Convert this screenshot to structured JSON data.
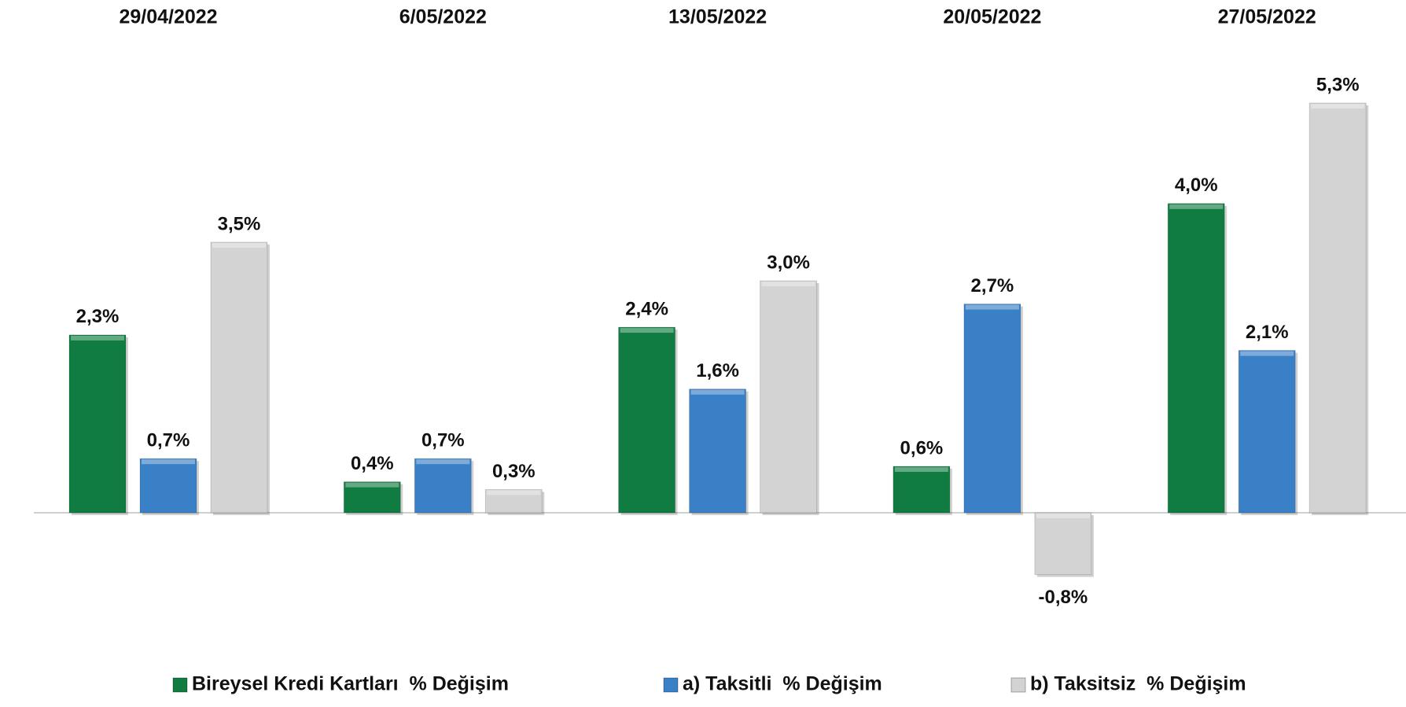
{
  "chart_data": {
    "type": "bar",
    "categories": [
      "29/04/2022",
      "6/05/2022",
      "13/05/2022",
      "20/05/2022",
      "27/05/2022"
    ],
    "series": [
      {
        "name": "Bireysel Kredi Kartları  % Değişim",
        "color": "#107c41",
        "values": [
          2.3,
          0.4,
          2.4,
          0.6,
          4.0
        ],
        "value_labels": [
          "2,3%",
          "0,4%",
          "2,4%",
          "0,6%",
          "4,0%"
        ]
      },
      {
        "name": "a) Taksitli  % Değişim",
        "color": "#3a80c6",
        "values": [
          0.7,
          0.7,
          1.6,
          2.7,
          2.1
        ],
        "value_labels": [
          "0,7%",
          "0,7%",
          "1,6%",
          "2,7%",
          "2,1%"
        ]
      },
      {
        "name": "b) Taksitsiz  % Değişim",
        "color": "#d3d3d3",
        "values": [
          3.5,
          0.3,
          3.0,
          -0.8,
          5.3
        ],
        "value_labels": [
          "3,5%",
          "0,3%",
          "3,0%",
          "-0,8%",
          "5,3%"
        ]
      }
    ],
    "grid": false,
    "legend": "bottom"
  }
}
